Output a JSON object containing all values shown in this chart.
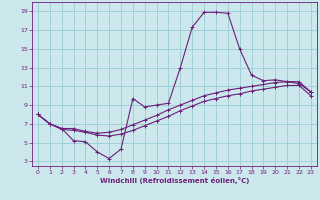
{
  "xlabel": "Windchill (Refroidissement éolien,°C)",
  "bg_color": "#cce8ec",
  "grid_color": "#99ccd4",
  "line_color": "#6b1f7a",
  "xlim": [
    -0.5,
    23.5
  ],
  "ylim": [
    2.5,
    20
  ],
  "xticks": [
    0,
    1,
    2,
    3,
    4,
    5,
    6,
    7,
    8,
    9,
    10,
    11,
    12,
    13,
    14,
    15,
    16,
    17,
    18,
    19,
    20,
    21,
    22,
    23
  ],
  "yticks": [
    3,
    5,
    7,
    9,
    11,
    13,
    15,
    17,
    19
  ],
  "curve1_x": [
    0,
    1,
    2,
    3,
    4,
    5,
    6,
    7,
    8,
    9,
    10,
    11,
    12,
    13,
    14,
    15,
    16,
    17,
    18,
    19,
    20,
    21,
    22,
    23
  ],
  "curve1_y": [
    8.0,
    7.0,
    6.5,
    5.2,
    5.1,
    4.0,
    3.3,
    4.3,
    9.7,
    8.8,
    9.0,
    9.2,
    13.0,
    17.3,
    18.9,
    18.9,
    18.8,
    15.0,
    12.2,
    11.6,
    11.7,
    11.5,
    11.3,
    10.4
  ],
  "curve2_x": [
    0,
    1,
    2,
    3,
    4,
    5,
    6,
    7,
    8,
    9,
    10,
    11,
    12,
    13,
    14,
    15,
    16,
    17,
    18,
    19,
    20,
    21,
    22,
    23
  ],
  "curve2_y": [
    8.0,
    7.0,
    6.5,
    6.5,
    6.2,
    6.0,
    6.1,
    6.4,
    6.9,
    7.4,
    7.9,
    8.5,
    9.0,
    9.5,
    10.0,
    10.3,
    10.6,
    10.8,
    11.0,
    11.2,
    11.4,
    11.5,
    11.5,
    10.4
  ],
  "curve3_x": [
    0,
    1,
    2,
    3,
    4,
    5,
    6,
    7,
    8,
    9,
    10,
    11,
    12,
    13,
    14,
    15,
    16,
    17,
    18,
    19,
    20,
    21,
    22,
    23
  ],
  "curve3_y": [
    8.0,
    7.0,
    6.4,
    6.3,
    6.1,
    5.8,
    5.7,
    5.9,
    6.3,
    6.8,
    7.3,
    7.8,
    8.4,
    8.9,
    9.4,
    9.7,
    10.0,
    10.2,
    10.5,
    10.7,
    10.9,
    11.1,
    11.1,
    10.0
  ]
}
